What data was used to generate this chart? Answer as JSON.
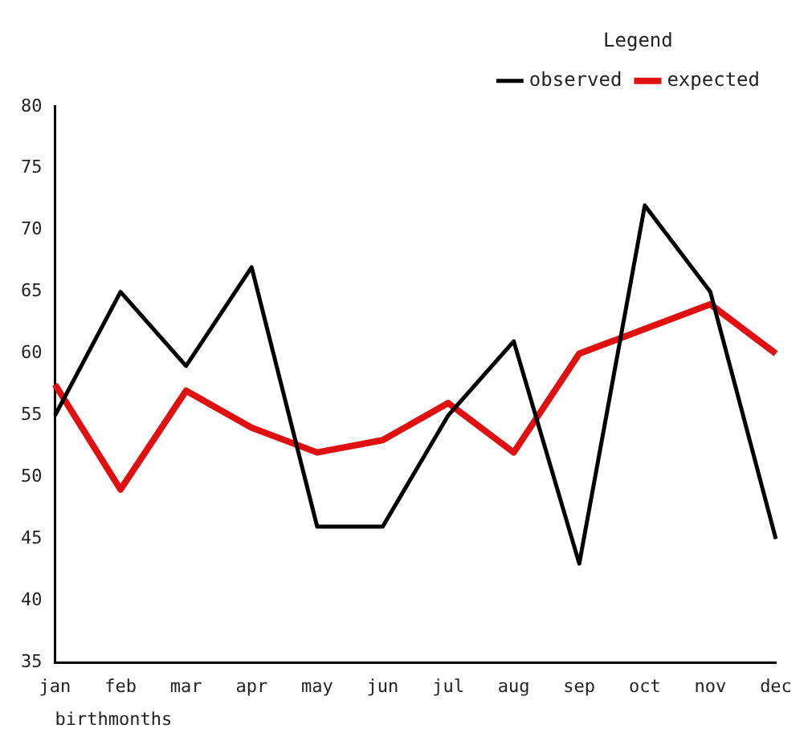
{
  "chart_data": {
    "type": "line",
    "xlabel": "birthmonths",
    "legend_title": "Legend",
    "legend": "top right",
    "marker": "none",
    "grid": false,
    "categories": [
      "jan",
      "feb",
      "mar",
      "apr",
      "may",
      "jun",
      "jul",
      "aug",
      "sep",
      "oct",
      "nov",
      "dec"
    ],
    "ylim": [
      35,
      80
    ],
    "yticks": [
      35,
      40,
      45,
      50,
      55,
      60,
      65,
      70,
      75,
      80
    ],
    "series": [
      {
        "name": "observed",
        "color": "#000000",
        "values": [
          55,
          65,
          59,
          67,
          46,
          46,
          55,
          61,
          43,
          72,
          65,
          45
        ]
      },
      {
        "name": "expected",
        "color": "#e01010",
        "values": [
          57.5,
          49,
          57,
          54,
          52,
          53,
          56,
          52,
          60,
          62,
          64,
          60
        ]
      }
    ]
  }
}
